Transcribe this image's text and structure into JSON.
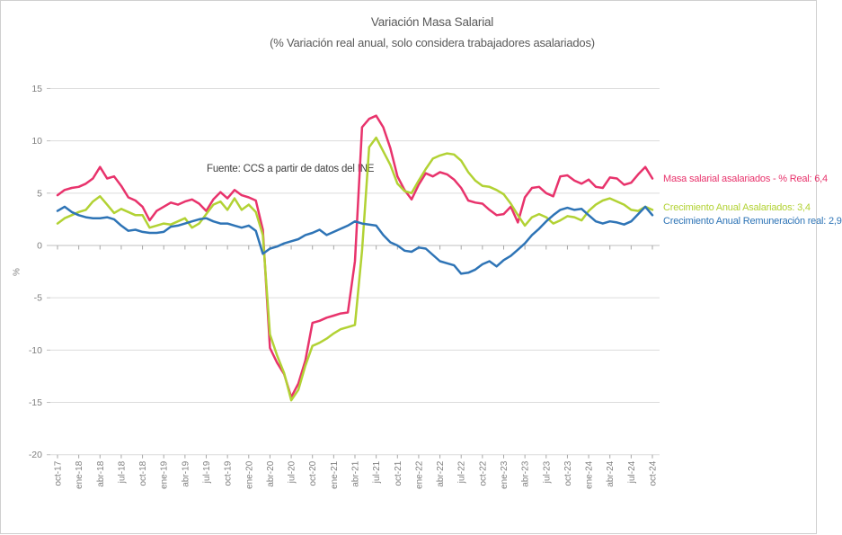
{
  "chart_data": {
    "type": "line",
    "title": "Variación Masa Salarial",
    "subtitle": "(% Variación real anual, solo considera trabajadores asalariados)",
    "annotation": "Fuente: CCS a partir de datos del INE",
    "ylabel": "%",
    "ylim": [
      -20,
      15
    ],
    "y_ticks": [
      15,
      10,
      5,
      0,
      -5,
      -10,
      -15,
      -20
    ],
    "grid": true,
    "legend_position": "right",
    "x_tick_every": 3,
    "x": [
      "oct-17",
      "nov-17",
      "dic-17",
      "ene-18",
      "feb-18",
      "mar-18",
      "abr-18",
      "may-18",
      "jun-18",
      "jul-18",
      "ago-18",
      "sep-18",
      "oct-18",
      "nov-18",
      "dic-18",
      "ene-19",
      "feb-19",
      "mar-19",
      "abr-19",
      "may-19",
      "jun-19",
      "jul-19",
      "ago-19",
      "sep-19",
      "oct-19",
      "nov-19",
      "dic-19",
      "ene-20",
      "feb-20",
      "mar-20",
      "abr-20",
      "may-20",
      "jun-20",
      "jul-20",
      "ago-20",
      "sep-20",
      "oct-20",
      "nov-20",
      "dic-20",
      "ene-21",
      "feb-21",
      "mar-21",
      "abr-21",
      "may-21",
      "jun-21",
      "jul-21",
      "ago-21",
      "sep-21",
      "oct-21",
      "nov-21",
      "dic-21",
      "ene-22",
      "feb-22",
      "mar-22",
      "abr-22",
      "may-22",
      "jun-22",
      "jul-22",
      "ago-22",
      "sep-22",
      "oct-22",
      "nov-22",
      "dic-22",
      "ene-23",
      "feb-23",
      "mar-23",
      "abr-23",
      "may-23",
      "jun-23",
      "jul-23",
      "ago-23",
      "sep-23",
      "oct-23",
      "nov-23",
      "dic-23",
      "ene-24",
      "feb-24",
      "mar-24",
      "abr-24",
      "may-24",
      "jun-24",
      "jul-24",
      "ago-24",
      "sep-24",
      "oct-24"
    ],
    "series": [
      {
        "name": "Masa salarial asalariados - % Real",
        "legend_label": "Masa salarial asalariados - % Real: 6,4",
        "end_value": "6,4",
        "color": "#e8336c",
        "values": [
          4.8,
          5.3,
          5.5,
          5.6,
          5.9,
          6.4,
          7.5,
          6.4,
          6.6,
          5.7,
          4.6,
          4.3,
          3.7,
          2.4,
          3.3,
          3.7,
          4.1,
          3.9,
          4.2,
          4.4,
          4.0,
          3.3,
          4.4,
          5.1,
          4.5,
          5.3,
          4.8,
          4.6,
          4.3,
          1.5,
          -9.8,
          -11.2,
          -12.3,
          -14.5,
          -13.2,
          -11.0,
          -7.4,
          -7.2,
          -6.9,
          -6.7,
          -6.5,
          -6.4,
          -1.5,
          11.3,
          12.1,
          12.4,
          11.3,
          9.3,
          6.6,
          5.3,
          4.4,
          5.8,
          6.9,
          6.6,
          7.0,
          6.8,
          6.3,
          5.5,
          4.3,
          4.1,
          4.0,
          3.4,
          2.9,
          3.0,
          3.7,
          2.2,
          4.6,
          5.5,
          5.6,
          5.0,
          4.7,
          6.6,
          6.7,
          6.2,
          5.9,
          6.3,
          5.6,
          5.5,
          6.5,
          6.4,
          5.8,
          6.0,
          6.8,
          7.5,
          6.4
        ]
      },
      {
        "name": "Crecimiento Anual Asalariados",
        "legend_label": "Crecimiento Anual Asalariados: 3,4",
        "end_value": "3,4",
        "color": "#b2d234",
        "values": [
          2.1,
          2.6,
          2.9,
          3.2,
          3.4,
          4.2,
          4.7,
          3.9,
          3.1,
          3.5,
          3.2,
          2.9,
          2.9,
          1.7,
          1.9,
          2.1,
          2.0,
          2.3,
          2.6,
          1.7,
          2.1,
          3.0,
          3.9,
          4.2,
          3.4,
          4.5,
          3.4,
          3.9,
          3.2,
          1.0,
          -8.5,
          -10.5,
          -12.2,
          -14.8,
          -13.8,
          -11.5,
          -9.6,
          -9.3,
          -8.9,
          -8.4,
          -8.0,
          -7.8,
          -7.6,
          -0.5,
          9.4,
          10.3,
          9.0,
          7.7,
          5.9,
          5.2,
          5.0,
          6.2,
          7.3,
          8.3,
          8.6,
          8.8,
          8.7,
          8.1,
          7.0,
          6.2,
          5.7,
          5.6,
          5.3,
          4.9,
          4.0,
          2.9,
          1.9,
          2.7,
          3.0,
          2.7,
          2.1,
          2.4,
          2.8,
          2.7,
          2.4,
          3.3,
          3.9,
          4.3,
          4.5,
          4.2,
          3.9,
          3.4,
          3.3,
          3.7,
          3.4
        ]
      },
      {
        "name": "Crecimiento Anual Remuneración real",
        "legend_label": "Crecimiento Anual Remuneración real: 2,9",
        "end_value": "2,9",
        "color": "#2e74b6",
        "values": [
          3.3,
          3.7,
          3.2,
          2.9,
          2.7,
          2.6,
          2.6,
          2.7,
          2.5,
          1.9,
          1.4,
          1.5,
          1.3,
          1.2,
          1.2,
          1.3,
          1.8,
          1.9,
          2.1,
          2.3,
          2.5,
          2.6,
          2.3,
          2.1,
          2.1,
          1.9,
          1.7,
          1.9,
          1.4,
          -0.8,
          -0.3,
          -0.1,
          0.2,
          0.4,
          0.6,
          1.0,
          1.2,
          1.5,
          1.0,
          1.3,
          1.6,
          1.9,
          2.3,
          2.1,
          2.0,
          1.9,
          1.0,
          0.3,
          0.0,
          -0.5,
          -0.6,
          -0.2,
          -0.3,
          -0.9,
          -1.5,
          -1.7,
          -1.9,
          -2.7,
          -2.6,
          -2.3,
          -1.8,
          -1.5,
          -2.0,
          -1.4,
          -1.0,
          -0.4,
          0.2,
          1.0,
          1.6,
          2.3,
          2.9,
          3.4,
          3.6,
          3.4,
          3.5,
          2.9,
          2.3,
          2.1,
          2.3,
          2.2,
          2.0,
          2.3,
          3.0,
          3.7,
          2.9
        ]
      }
    ]
  }
}
